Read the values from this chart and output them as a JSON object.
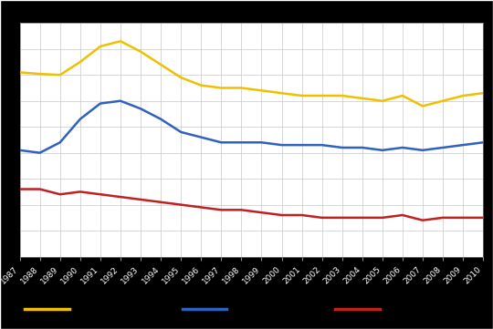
{
  "years": [
    1987,
    1988,
    1989,
    1990,
    1991,
    1992,
    1993,
    1994,
    1995,
    1996,
    1997,
    1998,
    1999,
    2000,
    2001,
    2002,
    2003,
    2004,
    2005,
    2006,
    2007,
    2008,
    2009,
    2010
  ],
  "yellow": [
    35.5,
    35.2,
    35.0,
    37.5,
    40.5,
    41.5,
    39.5,
    37.0,
    34.5,
    33.0,
    32.5,
    32.5,
    32.0,
    31.5,
    31.0,
    31.0,
    31.0,
    30.5,
    30.0,
    31.0,
    29.0,
    30.0,
    31.0,
    31.5
  ],
  "blue": [
    20.5,
    20.0,
    22.0,
    26.5,
    29.5,
    30.0,
    28.5,
    26.5,
    24.0,
    23.0,
    22.0,
    22.0,
    22.0,
    21.5,
    21.5,
    21.5,
    21.0,
    21.0,
    20.5,
    21.0,
    20.5,
    21.0,
    21.5,
    22.0
  ],
  "red": [
    13.0,
    13.0,
    12.0,
    12.5,
    12.0,
    11.5,
    11.0,
    10.5,
    10.0,
    9.5,
    9.0,
    9.0,
    8.5,
    8.0,
    8.0,
    7.5,
    7.5,
    7.5,
    7.5,
    8.0,
    7.0,
    7.5,
    7.5,
    7.5
  ],
  "yellow_color": "#f0c000",
  "blue_color": "#3060c0",
  "red_color": "#c02020",
  "bg_color": "#000000",
  "plot_bg_color": "#ffffff",
  "ylabel": "%",
  "ylim": [
    0,
    45
  ],
  "line_width": 1.8,
  "grid_color": "#c8c8c8",
  "tick_label_color": "#ffffff",
  "ylabel_color": "#ffffff"
}
